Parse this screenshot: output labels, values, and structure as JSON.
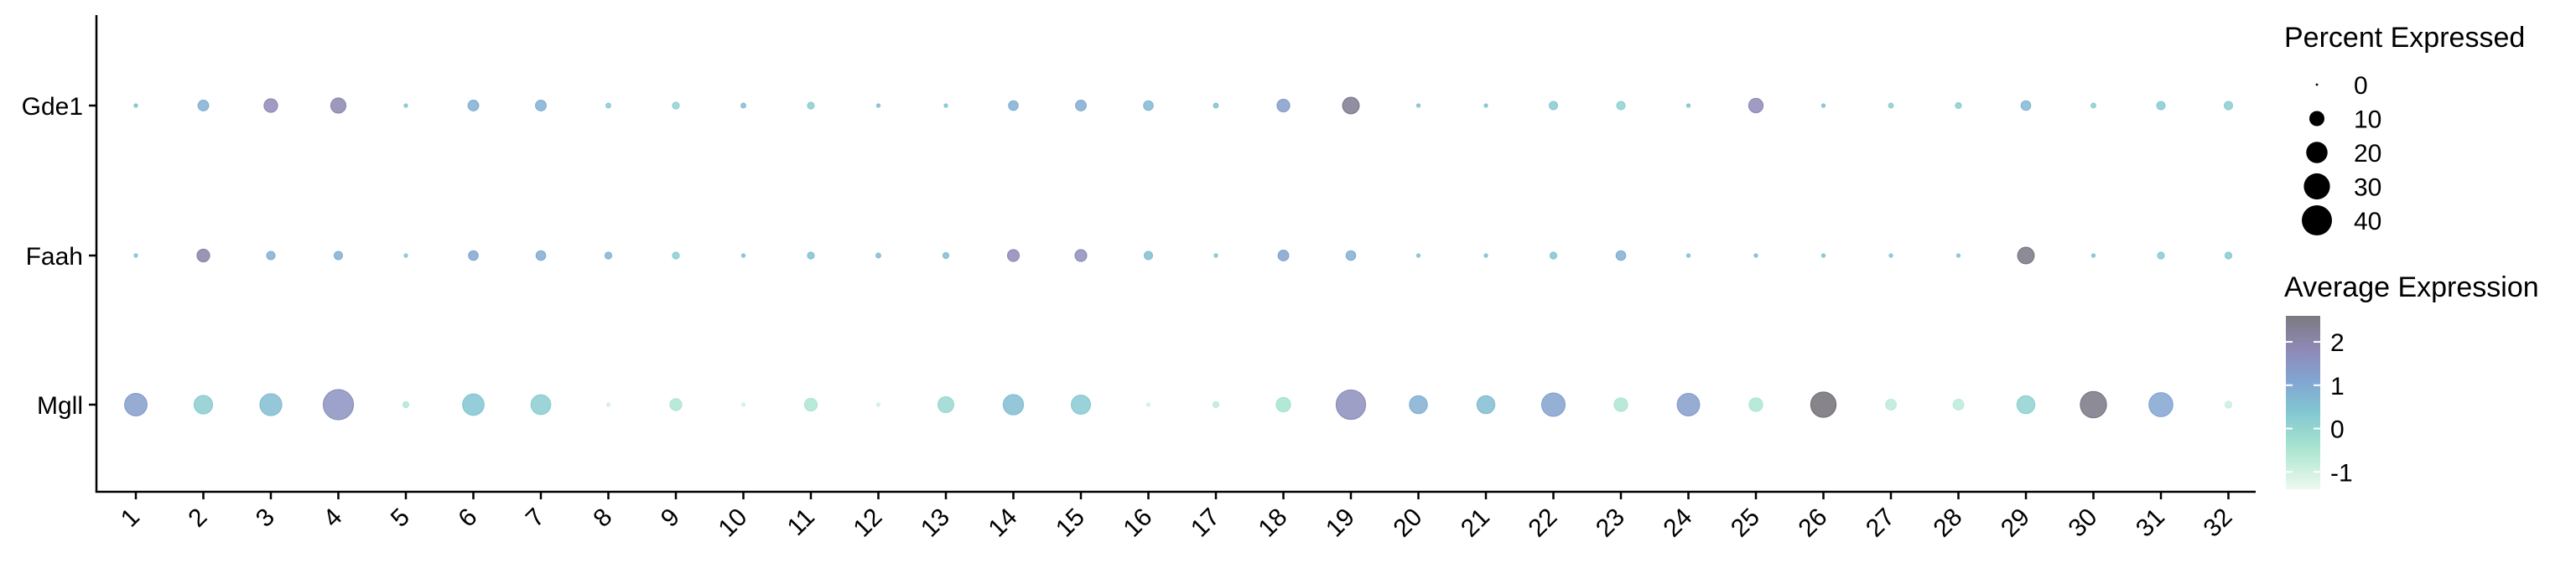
{
  "chart_data": {
    "type": "dotplot",
    "x_categories": [
      "1",
      "2",
      "3",
      "4",
      "5",
      "6",
      "7",
      "8",
      "9",
      "10",
      "11",
      "12",
      "13",
      "14",
      "15",
      "16",
      "17",
      "18",
      "19",
      "20",
      "21",
      "22",
      "23",
      "24",
      "25",
      "26",
      "27",
      "28",
      "29",
      "30",
      "31",
      "32"
    ],
    "y_categories": [
      "Gde1",
      "Faah",
      "Mgll"
    ],
    "percent_expressed": {
      "Gde1": [
        0.5,
        5,
        8,
        10,
        0.5,
        5,
        5,
        1,
        2,
        1,
        2,
        0.5,
        0.5,
        4,
        5,
        4,
        1,
        7,
        12,
        0.5,
        0.5,
        3,
        3,
        0.5,
        9,
        0.5,
        1,
        1.5,
        4,
        1,
        3,
        3
      ],
      "Faah": [
        0.5,
        7,
        3,
        3,
        0.5,
        4,
        4,
        2,
        2,
        0.5,
        2,
        1,
        1.5,
        6,
        6,
        3,
        0.5,
        5,
        4,
        0.5,
        0.5,
        2,
        4,
        0.5,
        0.5,
        0.5,
        0.5,
        0.5,
        12,
        0.5,
        2,
        2
      ],
      "Mgll": [
        22,
        15,
        21,
        40,
        1.5,
        20,
        17,
        0.5,
        6,
        0.5,
        7,
        0.5,
        11,
        18,
        16,
        0.5,
        1.5,
        9,
        38,
        14,
        14,
        24,
        8,
        22,
        8,
        28,
        5,
        5,
        14,
        30,
        25,
        2
      ]
    },
    "average_expression": {
      "Gde1": [
        0.5,
        0.9,
        1.8,
        1.9,
        0.4,
        0.9,
        0.9,
        0.3,
        0.1,
        0.6,
        0.2,
        0.6,
        0.4,
        0.9,
        1.0,
        0.7,
        0.5,
        1.3,
        2.3,
        0.5,
        0.5,
        0.3,
        0.1,
        0.5,
        1.8,
        0.5,
        0.2,
        0.2,
        0.7,
        0.2,
        0.3,
        0.2
      ],
      "Faah": [
        0.5,
        2.0,
        0.9,
        0.9,
        0.4,
        1.1,
        1.0,
        0.8,
        0.2,
        0.6,
        0.5,
        0.6,
        0.6,
        1.8,
        1.7,
        0.6,
        0.5,
        1.2,
        0.9,
        0.5,
        0.5,
        0.4,
        0.9,
        0.5,
        0.6,
        0.5,
        0.4,
        0.4,
        2.4,
        0.5,
        0.3,
        0.3
      ],
      "Mgll": [
        1.3,
        0.2,
        0.6,
        1.6,
        -0.6,
        0.4,
        0.2,
        -1.0,
        -0.5,
        -1.0,
        -0.5,
        -1.0,
        -0.1,
        0.6,
        0.3,
        -1.0,
        -0.7,
        -0.4,
        1.7,
        0.9,
        0.6,
        1.2,
        -0.5,
        1.3,
        -0.5,
        2.6,
        -0.7,
        -0.7,
        0.1,
        2.4,
        1.1,
        -0.9
      ]
    },
    "legend": {
      "size_title": "Percent Expressed",
      "size_values": [
        0,
        10,
        20,
        30,
        40
      ],
      "size_labels": [
        "0",
        "10",
        "20",
        "30",
        "40"
      ],
      "color_title": "Average Expression",
      "color_ticks": [
        2,
        1,
        0,
        -1
      ],
      "color_labels": [
        "2",
        "1",
        "0",
        "-1"
      ],
      "color_range": [
        -1.4,
        2.6
      ]
    },
    "colors": {
      "low": "#e6f7ec",
      "mid_low": "#8fdcc8",
      "mid": "#77b6d2",
      "mid_high": "#8c8cbf",
      "high": "#6e6e6e"
    },
    "xlabel": "",
    "ylabel": "",
    "grid": false
  }
}
